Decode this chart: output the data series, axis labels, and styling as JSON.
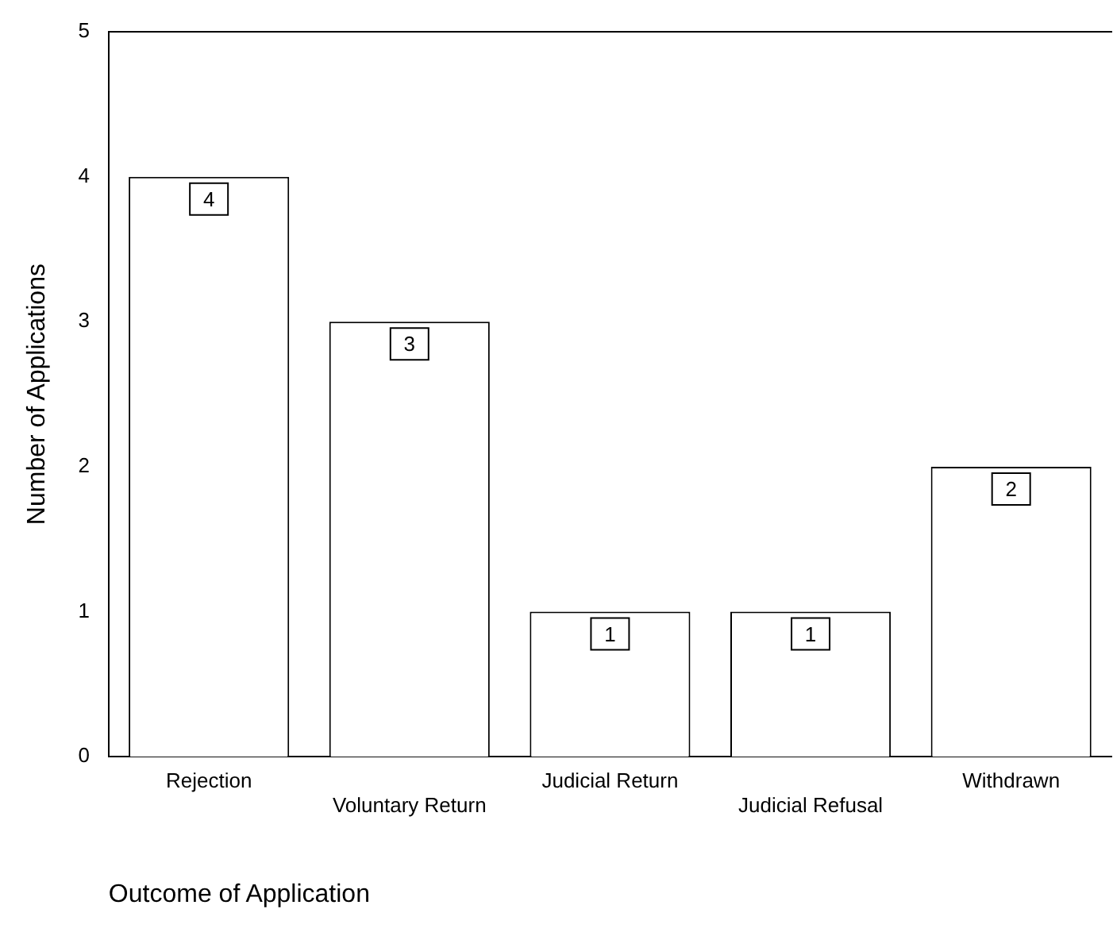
{
  "chart_data": {
    "type": "bar",
    "xlabel": "Outcome of Application",
    "ylabel": "Number of Applications",
    "categories": [
      "Rejection",
      "Voluntary Return",
      "Judicial Return",
      "Judicial Refusal",
      "Withdrawn"
    ],
    "values": [
      4,
      3,
      1,
      1,
      2
    ],
    "color": "#ffffff",
    "ylim": [
      0,
      5
    ],
    "yticks": [
      0,
      1,
      2,
      3,
      4,
      5
    ],
    "grid": false,
    "legend": false,
    "data_labels": true
  }
}
